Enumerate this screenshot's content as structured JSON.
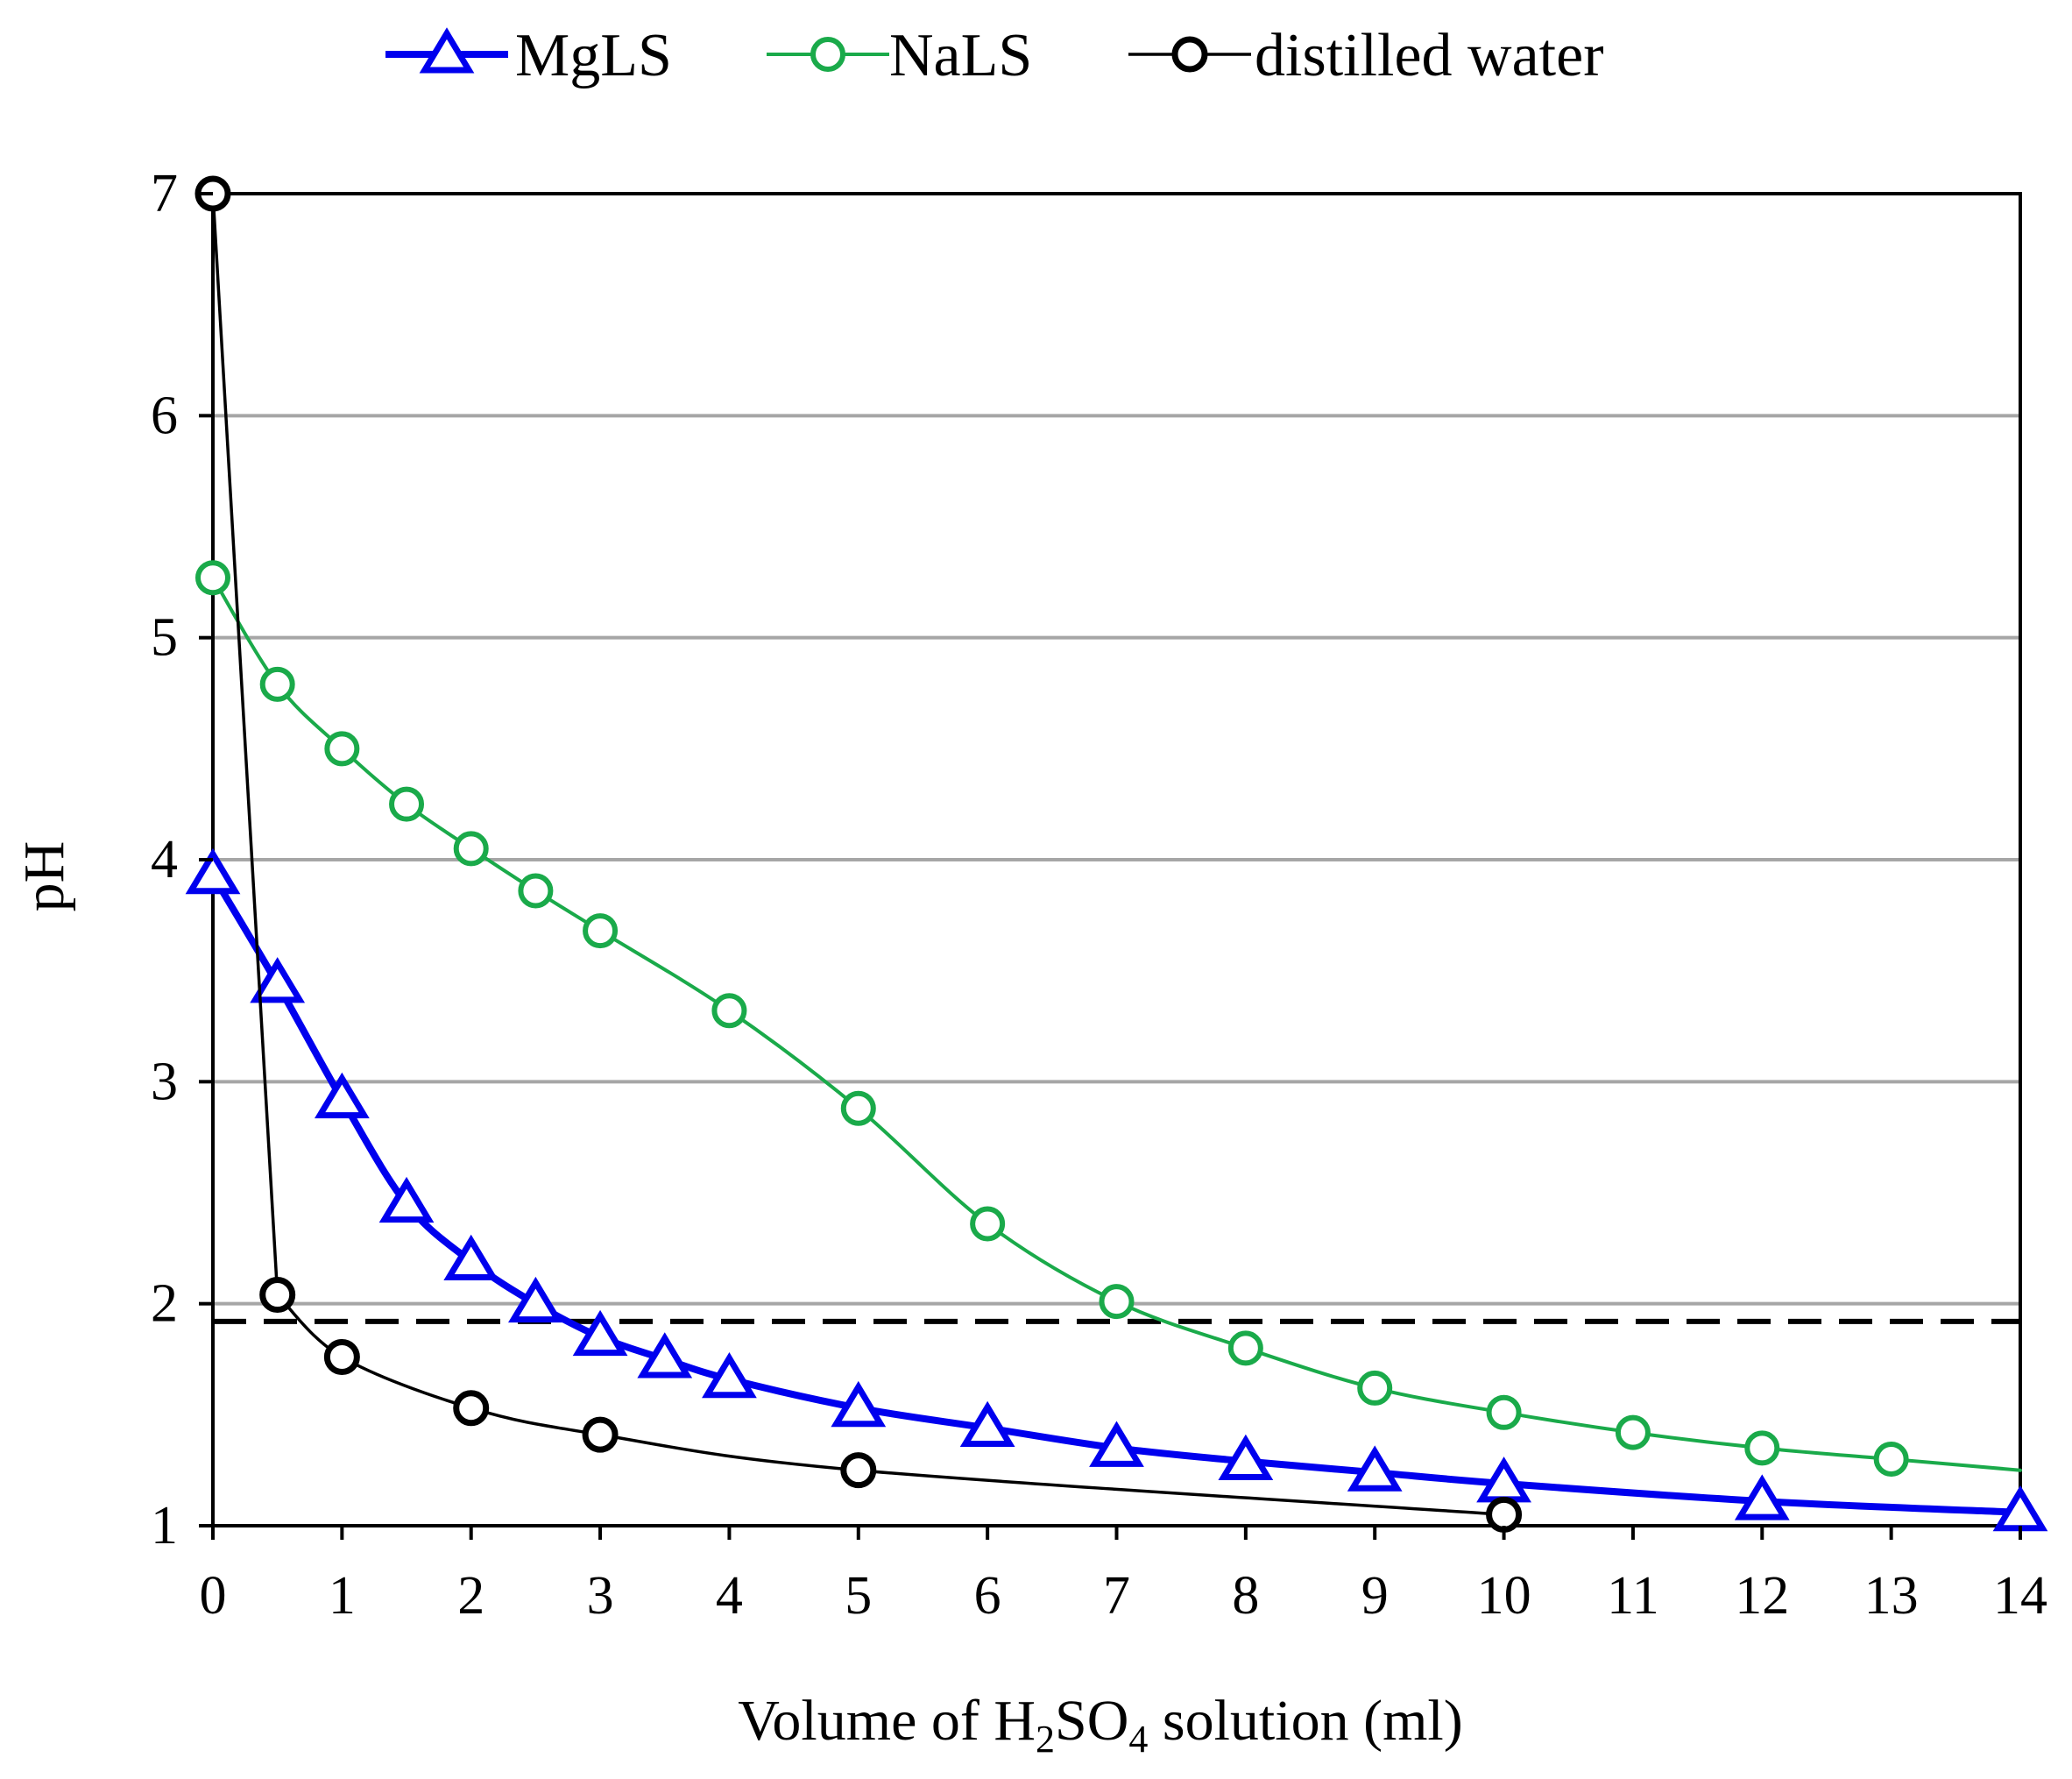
{
  "chart_data": {
    "type": "line",
    "xlabel": {
      "text_before": "Volume of H",
      "sub1": "2",
      "text_mid": "SO",
      "sub2": "4",
      "text_after": " solution (ml)"
    },
    "ylabel": "pH",
    "xlim": [
      0,
      14
    ],
    "ylim": [
      1,
      7
    ],
    "x_ticks": [
      "0",
      "1",
      "2",
      "3",
      "4",
      "5",
      "6",
      "7",
      "8",
      "9",
      "10",
      "11",
      "12",
      "13",
      "14"
    ],
    "y_ticks": [
      "1",
      "2",
      "3",
      "4",
      "5",
      "6",
      "7"
    ],
    "grid": "horizontal",
    "legend_position": "top",
    "reference_line": {
      "y": 1.92,
      "style": "dashed",
      "color": "#000000"
    },
    "series": [
      {
        "name": "MgLS",
        "color": "#0000ee",
        "marker": "triangle",
        "x": [
          0,
          0.5,
          1,
          1.5,
          2,
          2.5,
          3,
          3.5,
          4,
          5,
          6,
          7,
          8,
          9,
          10,
          12,
          14
        ],
        "y": [
          3.93,
          3.44,
          2.92,
          2.45,
          2.19,
          2.0,
          1.85,
          1.75,
          1.66,
          1.53,
          1.44,
          1.35,
          1.29,
          1.24,
          1.19,
          1.11,
          1.06
        ]
      },
      {
        "name": "NaLS",
        "color": "#1aaa4a",
        "marker": "circle",
        "x": [
          0,
          0.5,
          1,
          1.5,
          2,
          2.5,
          3,
          4,
          5,
          6,
          7,
          8,
          9,
          10,
          11,
          12,
          13
        ],
        "y": [
          5.27,
          4.79,
          4.5,
          4.25,
          4.05,
          3.86,
          3.68,
          3.32,
          2.88,
          2.36,
          2.01,
          1.8,
          1.62,
          1.51,
          1.42,
          1.35,
          1.3
        ],
        "line_extends_to": {
          "x": 14,
          "y": 1.25
        }
      },
      {
        "name": "distilled water",
        "color": "#000000",
        "marker": "circle",
        "x": [
          0,
          0.5,
          1,
          2,
          3,
          5,
          10
        ],
        "y": [
          7.0,
          2.04,
          1.76,
          1.53,
          1.41,
          1.25,
          1.05
        ]
      }
    ]
  }
}
